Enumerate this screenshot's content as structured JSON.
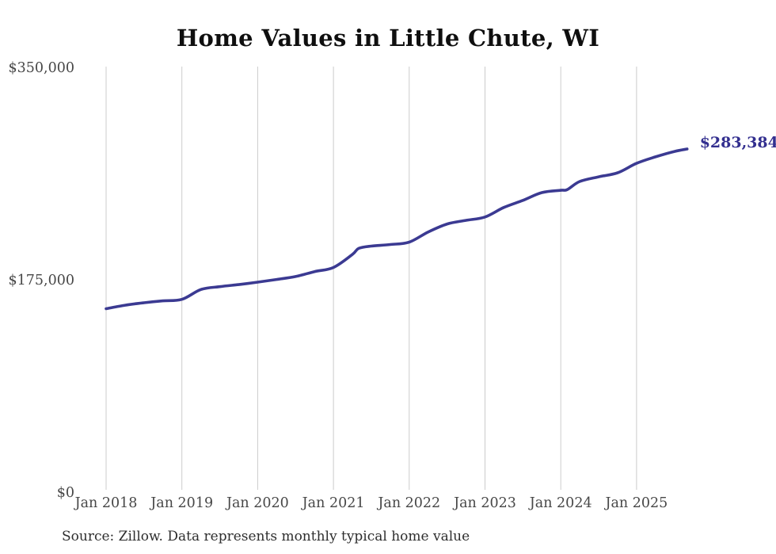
{
  "chart_data": {
    "type": "line",
    "title": "Home Values in Little Chute, WI",
    "xlabel": "",
    "ylabel": "",
    "ylim": [
      0,
      350000
    ],
    "x_range": [
      "2018-01",
      "2025-09"
    ],
    "grid": "vertical-only",
    "legend": "none",
    "end_label": "$283,384",
    "latest_value": 283384,
    "yticks": [
      {
        "label": "$350,000",
        "value": 350000
      },
      {
        "label": "$175,000",
        "value": 175000
      },
      {
        "label": "$0",
        "value": 0
      }
    ],
    "xticks": [
      {
        "label": "Jan 2018",
        "month": "2018-01"
      },
      {
        "label": "Jan 2019",
        "month": "2019-01"
      },
      {
        "label": "Jan 2020",
        "month": "2020-01"
      },
      {
        "label": "Jan 2021",
        "month": "2021-01"
      },
      {
        "label": "Jan 2022",
        "month": "2022-01"
      },
      {
        "label": "Jan 2023",
        "month": "2023-01"
      },
      {
        "label": "Jan 2024",
        "month": "2024-01"
      },
      {
        "label": "Jan 2025",
        "month": "2025-01"
      }
    ],
    "series": [
      {
        "name": "Monthly typical home value",
        "points": [
          {
            "month": "2018-01",
            "value": 151800
          },
          {
            "month": "2018-04",
            "value": 154700
          },
          {
            "month": "2018-07",
            "value": 156700
          },
          {
            "month": "2018-10",
            "value": 158300
          },
          {
            "month": "2019-01",
            "value": 159500
          },
          {
            "month": "2019-04",
            "value": 167600
          },
          {
            "month": "2019-07",
            "value": 170000
          },
          {
            "month": "2019-10",
            "value": 171700
          },
          {
            "month": "2020-01",
            "value": 173700
          },
          {
            "month": "2020-04",
            "value": 175900
          },
          {
            "month": "2020-07",
            "value": 178300
          },
          {
            "month": "2020-10",
            "value": 182400
          },
          {
            "month": "2021-01",
            "value": 185800
          },
          {
            "month": "2021-04",
            "value": 196500
          },
          {
            "month": "2021-05",
            "value": 201500
          },
          {
            "month": "2021-07",
            "value": 203400
          },
          {
            "month": "2021-10",
            "value": 204700
          },
          {
            "month": "2022-01",
            "value": 206700
          },
          {
            "month": "2022-04",
            "value": 215000
          },
          {
            "month": "2022-07",
            "value": 221600
          },
          {
            "month": "2022-10",
            "value": 224600
          },
          {
            "month": "2023-01",
            "value": 227400
          },
          {
            "month": "2023-04",
            "value": 235300
          },
          {
            "month": "2023-07",
            "value": 241100
          },
          {
            "month": "2023-10",
            "value": 247500
          },
          {
            "month": "2024-01",
            "value": 249400
          },
          {
            "month": "2024-02",
            "value": 249900
          },
          {
            "month": "2024-04",
            "value": 256600
          },
          {
            "month": "2024-07",
            "value": 260500
          },
          {
            "month": "2024-10",
            "value": 263800
          },
          {
            "month": "2025-01",
            "value": 271600
          },
          {
            "month": "2025-04",
            "value": 276900
          },
          {
            "month": "2025-07",
            "value": 281400
          },
          {
            "month": "2025-09",
            "value": 283384
          }
        ]
      }
    ],
    "colors": {
      "line": "#3b3a92",
      "grid": "#cccccc",
      "tick_text": "#474747",
      "title_text": "#0f0f0f",
      "annotation_text": "#332f8f",
      "source_text": "#2e2e2e"
    }
  },
  "source_note": "Source: Zillow. Data represents monthly typical home value"
}
